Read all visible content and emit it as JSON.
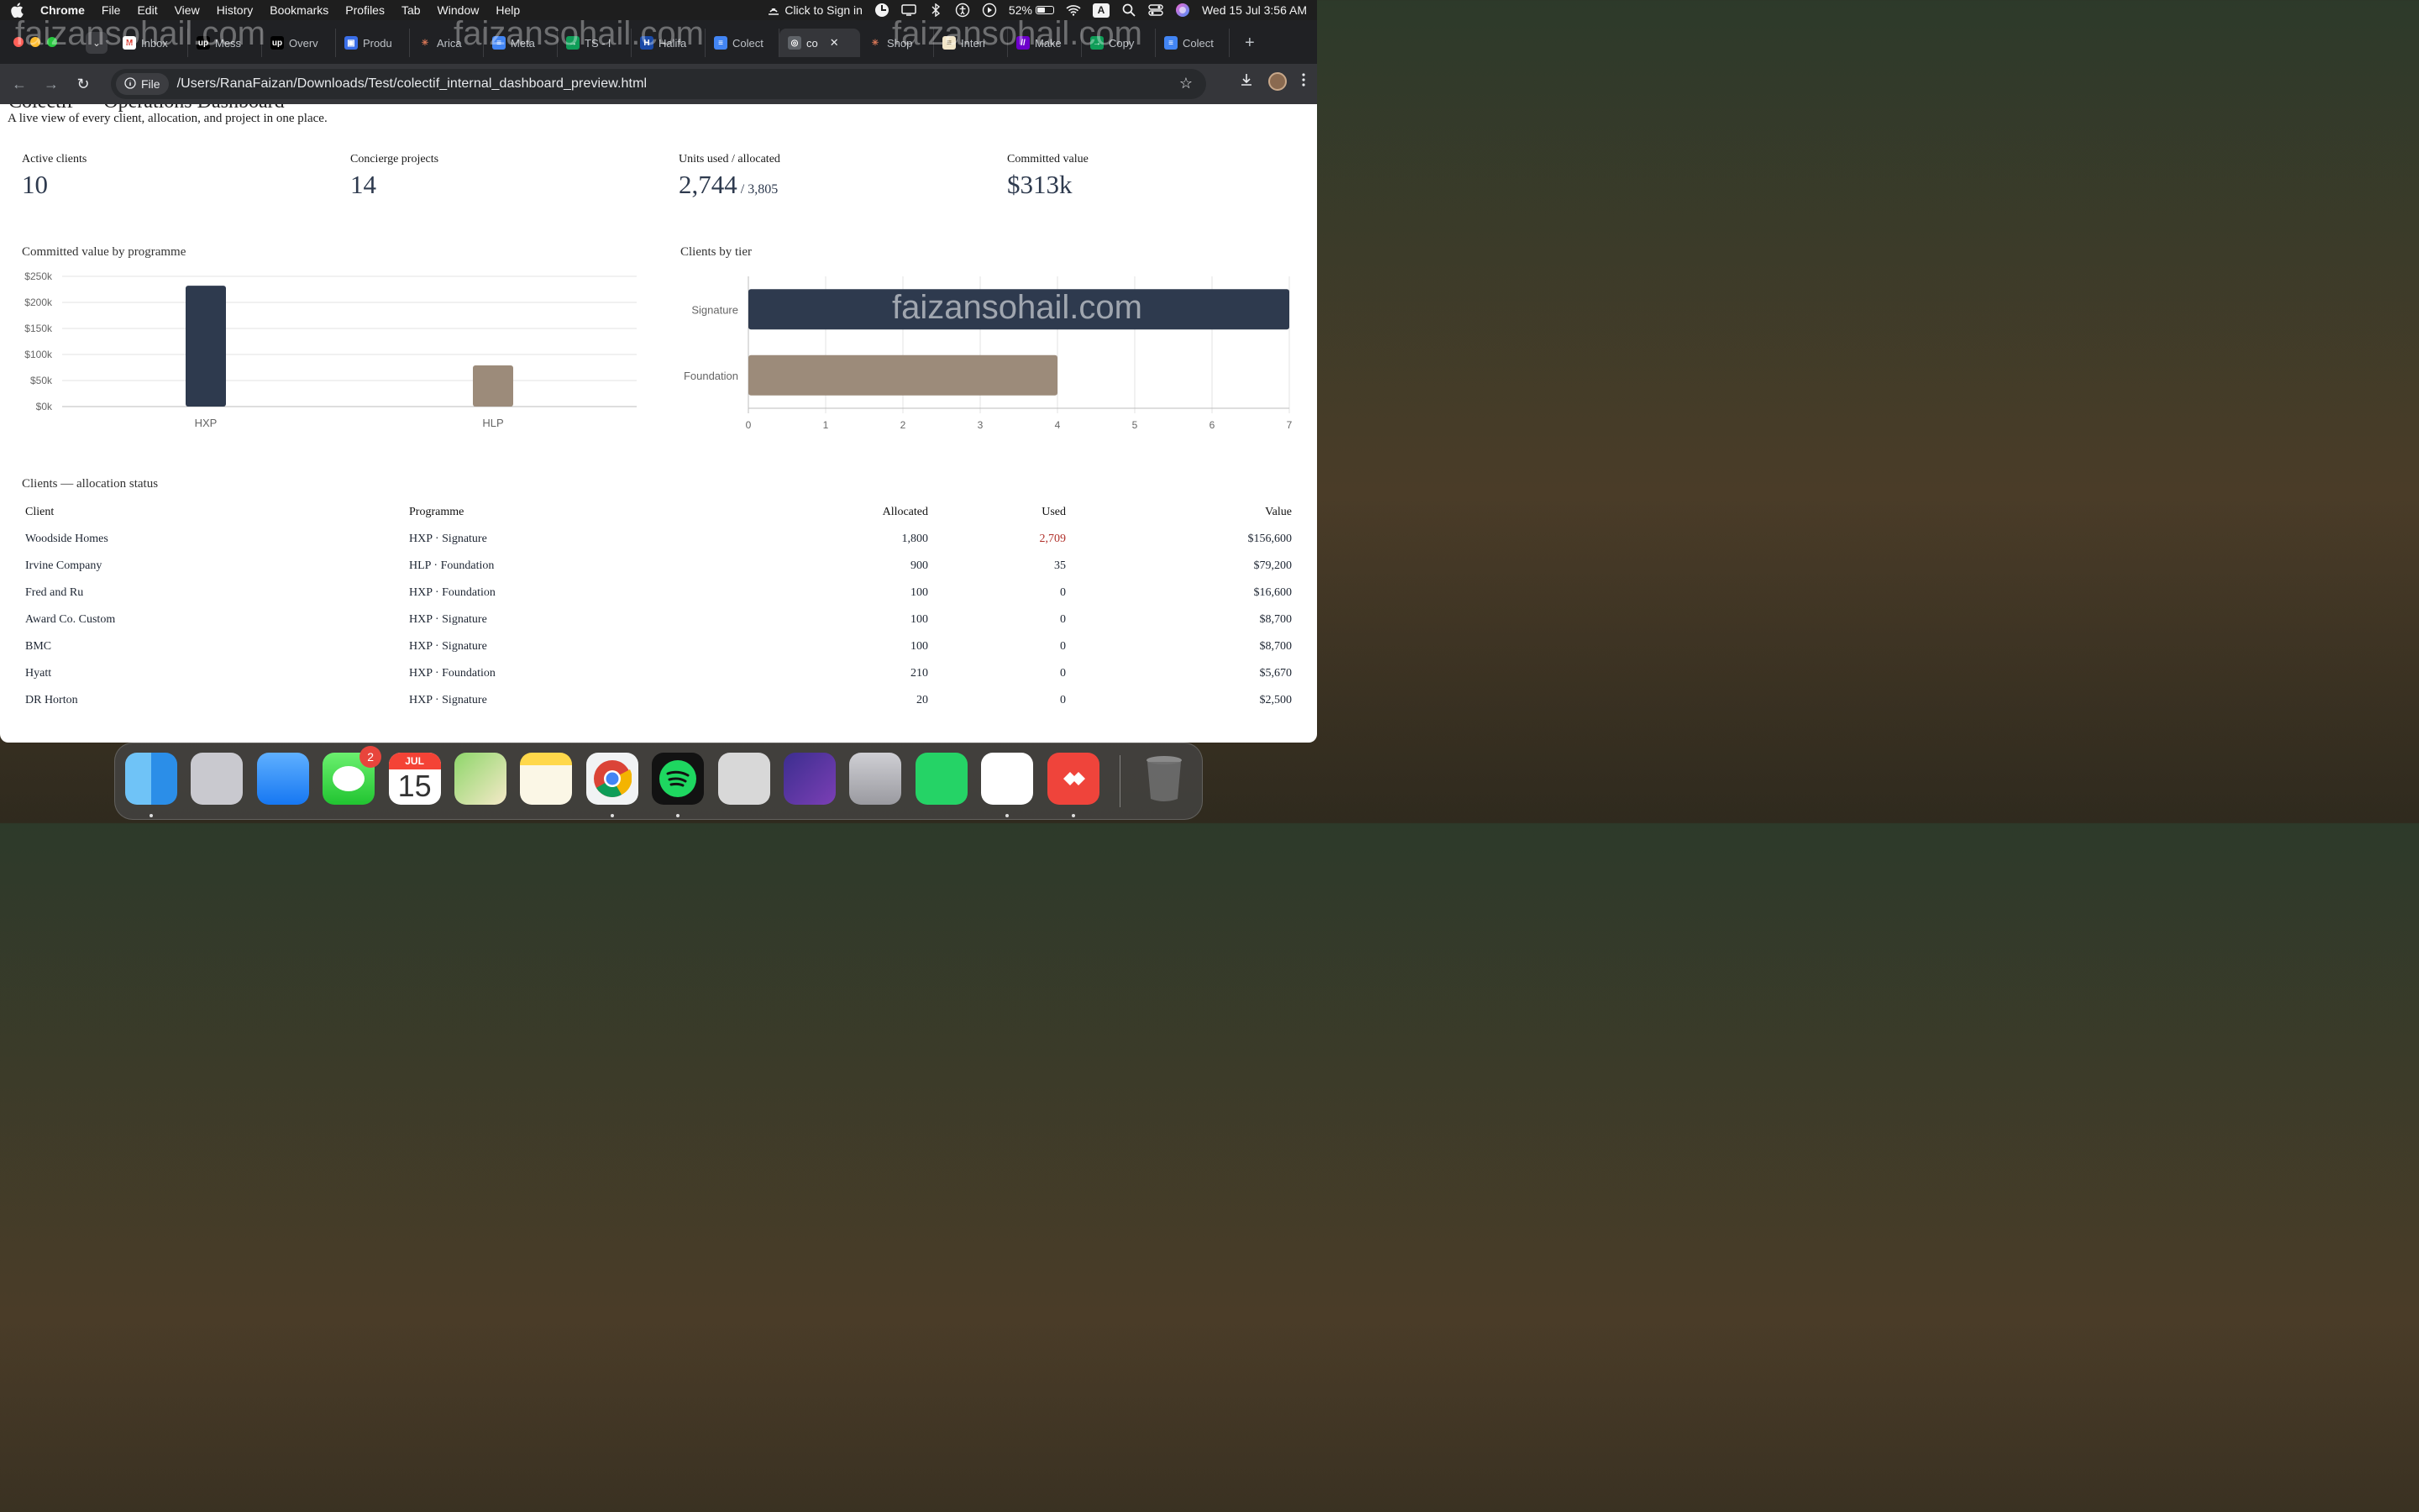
{
  "menubar": {
    "app": "Chrome",
    "items": [
      "File",
      "Edit",
      "View",
      "History",
      "Bookmarks",
      "Profiles",
      "Tab",
      "Window",
      "Help"
    ],
    "sign_in": "Click to Sign in",
    "battery": "52%",
    "battery_level": 0.52,
    "input_source": "A",
    "datetime": "Wed 15 Jul  3:56 AM"
  },
  "browser": {
    "tabs": [
      {
        "label": "Inbox",
        "icon": "gmail-icon"
      },
      {
        "label": "Mess",
        "icon": "upwork-icon"
      },
      {
        "label": "Overv",
        "icon": "upwork-icon"
      },
      {
        "label": "Produ",
        "icon": "cube-icon"
      },
      {
        "label": "Arica",
        "icon": "claude-icon"
      },
      {
        "label": "Meta",
        "icon": "docs-icon"
      },
      {
        "label": "TS - l",
        "icon": "sheets-icon"
      },
      {
        "label": "Halifa",
        "icon": "halifax-icon"
      },
      {
        "label": "Colect",
        "icon": "docs-icon"
      },
      {
        "label": "co",
        "icon": "globe-icon",
        "active": true
      },
      {
        "label": "Shop",
        "icon": "claude-icon"
      },
      {
        "label": "Interi",
        "icon": "notebook-icon"
      },
      {
        "label": "Make",
        "icon": "make-icon"
      },
      {
        "label": "Copy",
        "icon": "sheets-icon"
      },
      {
        "label": "Colect",
        "icon": "docs-icon"
      }
    ],
    "omnibox": {
      "chip": "File",
      "url": "/Users/RanaFaizan/Downloads/Test/colectif_internal_dashboard_preview.html"
    }
  },
  "page": {
    "title": "Colectif — Operations Dashboard",
    "subtitle": "A live view of every client, allocation, and project in one place.",
    "kpis": [
      {
        "label": "Active clients",
        "value": "10",
        "sub": ""
      },
      {
        "label": "Concierge projects",
        "value": "14",
        "sub": ""
      },
      {
        "label": "Units used / allocated",
        "value": "2,744",
        "sub": " / 3,805"
      },
      {
        "label": "Committed value",
        "value": "$313k",
        "sub": ""
      }
    ],
    "bar_chart_title": "Committed value by programme",
    "hbar_chart_title": "Clients by tier",
    "table_title": "Clients — allocation status",
    "table": {
      "headers": [
        "Client",
        "Programme",
        "Allocated",
        "Used",
        "Value"
      ],
      "rows": [
        [
          "Woodside Homes",
          "HXP · Signature",
          "1,800",
          "2,709",
          "$156,600"
        ],
        [
          "Irvine Company",
          "HLP · Foundation",
          "900",
          "35",
          "$79,200"
        ],
        [
          "Fred and Ru",
          "HXP · Foundation",
          "100",
          "0",
          "$16,600"
        ],
        [
          "Award Co. Custom",
          "HXP · Signature",
          "100",
          "0",
          "$8,700"
        ],
        [
          "BMC",
          "HXP · Signature",
          "100",
          "0",
          "$8,700"
        ],
        [
          "Hyatt",
          "HXP · Foundation",
          "210",
          "0",
          "$5,670"
        ],
        [
          "DR Horton",
          "HXP · Signature",
          "20",
          "0",
          "$2,500"
        ]
      ],
      "over_allocated_row": 0
    }
  },
  "chart_data": [
    {
      "type": "bar",
      "title": "Committed value by programme",
      "categories": [
        "HXP",
        "HLP"
      ],
      "values": [
        232000,
        79000
      ],
      "colors": [
        "#2e3a4e",
        "#9c8b7a"
      ],
      "ylim": [
        0,
        250000
      ],
      "yticks": [
        "$0k",
        "$50k",
        "$100k",
        "$150k",
        "$200k",
        "$250k"
      ],
      "ytick_values": [
        0,
        50000,
        100000,
        150000,
        200000,
        250000
      ],
      "grid": true
    },
    {
      "type": "bar",
      "orientation": "horizontal",
      "title": "Clients by tier",
      "categories": [
        "Signature",
        "Foundation"
      ],
      "values": [
        7,
        4
      ],
      "colors": [
        "#2e3a4e",
        "#9c8b7a"
      ],
      "xlim": [
        0,
        7
      ],
      "xticks": [
        "0",
        "1",
        "2",
        "3",
        "4",
        "5",
        "6",
        "7"
      ],
      "grid": true
    }
  ],
  "watermark": "faizansohail.com",
  "dock": {
    "apps": [
      "finder-icon",
      "launchpad-icon",
      "mail-icon",
      "messages-icon",
      "calendar-icon",
      "maps-icon",
      "notes-icon",
      "chrome-icon",
      "spotify-icon",
      "calculator-icon",
      "firefox-icon",
      "iphone-mirroring-icon",
      "whatsapp-icon",
      "slack-icon",
      "anydesk-icon",
      "trash-icon"
    ],
    "messages_badge": "2",
    "calendar_month": "JUL",
    "calendar_day": "15"
  },
  "colors": {
    "accent_dark": "#2e3a4e",
    "accent_tan": "#9c8b7a",
    "over_allocation": "#b0302a"
  }
}
